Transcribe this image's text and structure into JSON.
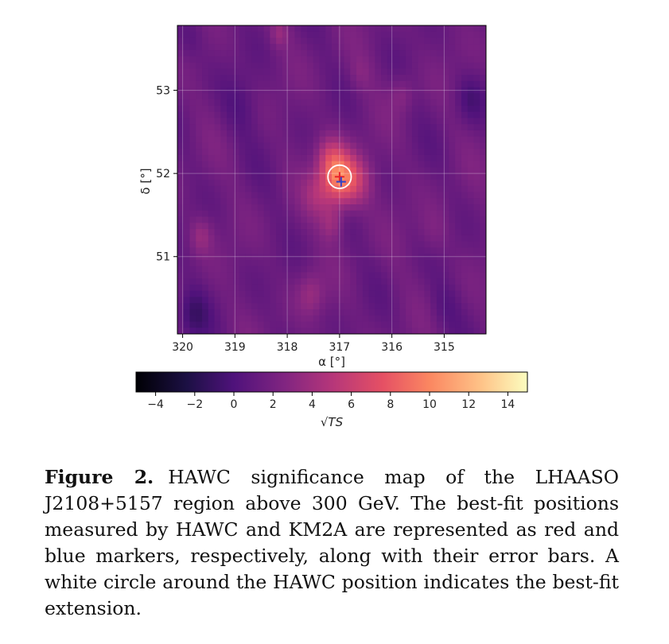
{
  "figure": {
    "chart_data": {
      "type": "heatmap",
      "title": "",
      "xlabel": "α [°]",
      "ylabel": "δ [°]",
      "xlim": [
        320.1,
        314.2
      ],
      "ylim": [
        50.07,
        53.78
      ],
      "x_ticks": [
        320,
        319,
        318,
        317,
        316,
        315
      ],
      "y_ticks": [
        51,
        52,
        53
      ],
      "grid": true,
      "colormap": "magma",
      "colorbar": {
        "label": "√TS",
        "range": [
          -5,
          15
        ],
        "ticks": [
          -4,
          -2,
          0,
          2,
          4,
          6,
          8,
          10,
          12,
          14
        ],
        "tick_labels": [
          "−4",
          "−2",
          "0",
          "2",
          "4",
          "6",
          "8",
          "10",
          "12",
          "14"
        ]
      },
      "background_level": 1.5,
      "peak": {
        "ra": 317.0,
        "dec": 51.95,
        "value": 9
      },
      "hotspots": [
        {
          "ra": 317.0,
          "dec": 51.95,
          "amp": 7.5,
          "sigma": 0.22
        },
        {
          "ra": 316.65,
          "dec": 51.9,
          "amp": 3.0,
          "sigma": 0.22
        },
        {
          "ra": 317.2,
          "dec": 52.2,
          "amp": 3.0,
          "sigma": 0.18
        },
        {
          "ra": 317.4,
          "dec": 51.75,
          "amp": 2.5,
          "sigma": 0.2
        },
        {
          "ra": 317.15,
          "dec": 51.4,
          "amp": 2.2,
          "sigma": 0.15
        },
        {
          "ra": 317.55,
          "dec": 50.55,
          "amp": 2.0,
          "sigma": 0.18
        },
        {
          "ra": 319.65,
          "dec": 51.25,
          "amp": 2.0,
          "sigma": 0.15
        },
        {
          "ra": 318.15,
          "dec": 53.68,
          "amp": 1.8,
          "sigma": 0.12
        },
        {
          "ra": 315.8,
          "dec": 52.95,
          "amp": 1.5,
          "sigma": 0.15
        },
        {
          "ra": 316.6,
          "dec": 53.2,
          "amp": 1.0,
          "sigma": 0.15
        },
        {
          "ra": 315.2,
          "dec": 51.3,
          "amp": 1.0,
          "sigma": 0.2
        },
        {
          "ra": 319.8,
          "dec": 50.3,
          "amp": -2.0,
          "sigma": 0.2
        },
        {
          "ra": 314.5,
          "dec": 52.9,
          "amp": -1.5,
          "sigma": 0.2
        },
        {
          "ra": 318.9,
          "dec": 52.8,
          "amp": -1.2,
          "sigma": 0.25
        },
        {
          "ra": 315.0,
          "dec": 50.4,
          "amp": -1.0,
          "sigma": 0.2
        },
        {
          "ra": 319.9,
          "dec": 53.6,
          "amp": -1.0,
          "sigma": 0.2
        }
      ],
      "markers": [
        {
          "name": "HAWC",
          "ra": 317.0,
          "dec": 51.96,
          "color": "#e8202a"
        },
        {
          "name": "KM2A",
          "ra": 316.97,
          "dec": 51.9,
          "color": "#3042c8"
        }
      ],
      "extension_circle": {
        "ra": 317.0,
        "dec": 51.96,
        "radius_deg": 0.14,
        "color": "#ffffff"
      }
    }
  },
  "caption": {
    "label": "Figure 2.",
    "text": "HAWC significance map of the LHAASO J2108+5157 region above 300 GeV. The best-fit positions measured by HAWC and KM2A are represented as red and blue markers, respectively, along with their error bars. A white circle around the HAWC position indicates the best-fit extension."
  }
}
